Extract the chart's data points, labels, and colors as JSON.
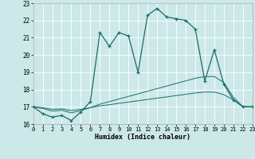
{
  "title": "",
  "xlabel": "Humidex (Indice chaleur)",
  "background_color": "#cce8e8",
  "grid_color": "#b0d4d4",
  "line_color": "#1a6b6b",
  "xmin": 0,
  "xmax": 23,
  "ymin": 16,
  "ymax": 23,
  "x_ticks": [
    0,
    1,
    2,
    3,
    4,
    5,
    6,
    7,
    8,
    9,
    10,
    11,
    12,
    13,
    14,
    15,
    16,
    17,
    18,
    19,
    20,
    21,
    22,
    23
  ],
  "y_ticks": [
    16,
    17,
    18,
    19,
    20,
    21,
    22,
    23
  ],
  "main_x": [
    0,
    1,
    2,
    3,
    4,
    5,
    6,
    7,
    8,
    9,
    10,
    11,
    12,
    13,
    14,
    15,
    16,
    17,
    18,
    19,
    20,
    21,
    22,
    23
  ],
  "main_y": [
    17.0,
    16.6,
    16.4,
    16.5,
    16.2,
    16.7,
    17.3,
    21.3,
    20.5,
    21.3,
    21.1,
    19.0,
    22.3,
    22.7,
    22.2,
    22.1,
    22.0,
    21.5,
    18.5,
    20.3,
    18.3,
    17.4,
    17.0,
    17.0
  ],
  "line2_x": [
    0,
    1,
    2,
    3,
    4,
    5,
    6,
    7,
    8,
    9,
    10,
    11,
    12,
    13,
    14,
    15,
    16,
    17,
    18,
    19,
    20,
    21,
    22,
    23
  ],
  "line2_y": [
    17.0,
    16.9,
    16.75,
    16.8,
    16.65,
    16.78,
    16.95,
    17.15,
    17.3,
    17.45,
    17.6,
    17.75,
    17.9,
    18.05,
    18.2,
    18.35,
    18.5,
    18.65,
    18.75,
    18.75,
    18.4,
    17.55,
    17.0,
    17.0
  ],
  "line3_x": [
    0,
    1,
    2,
    3,
    4,
    5,
    6,
    7,
    8,
    9,
    10,
    11,
    12,
    13,
    14,
    15,
    16,
    17,
    18,
    19,
    20,
    21,
    22,
    23
  ],
  "line3_y": [
    17.0,
    16.95,
    16.85,
    16.88,
    16.78,
    16.85,
    16.95,
    17.05,
    17.12,
    17.2,
    17.27,
    17.35,
    17.42,
    17.5,
    17.57,
    17.65,
    17.72,
    17.8,
    17.85,
    17.85,
    17.7,
    17.4,
    17.0,
    17.0
  ]
}
